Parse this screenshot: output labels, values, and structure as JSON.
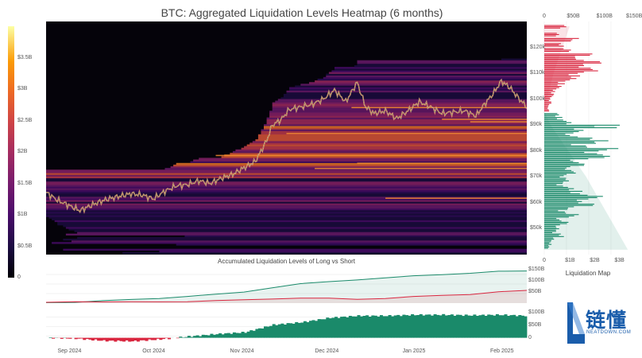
{
  "title": "BTC: Aggregated Liquidation Levels Heatmap (6 months)",
  "subplot_title": "Accumulated Liquidation Levels of Long vs Short",
  "side_title": "Liquidation Map",
  "brand": {
    "cn": "链懂",
    "en": "NEATDOWN.COM",
    "color": "#1a5dab"
  },
  "colors": {
    "long": "#1a8a6a",
    "short": "#d9263f",
    "bg_heat": "#05030a"
  },
  "chart_data": [
    {
      "type": "heatmap",
      "title": "BTC: Aggregated Liquidation Levels Heatmap (6 months)",
      "xlabel": "",
      "ylabel": "",
      "x_ticks": [
        "Sep 2024",
        "Oct 2024",
        "Nov 2024",
        "Dec 2024",
        "Jan 2025",
        "Feb 2025"
      ],
      "x_tick_positions_day": [
        8,
        38,
        69,
        99,
        130,
        161
      ],
      "x_days": 170,
      "y_range": [
        40000,
        130000
      ],
      "y_ticks": [
        {
          "v": 50000,
          "label": "$50k"
        },
        {
          "v": 60000,
          "label": "$60k"
        },
        {
          "v": 70000,
          "label": "$70k"
        },
        {
          "v": 80000,
          "label": "$80k"
        },
        {
          "v": 90000,
          "label": "$90k"
        },
        {
          "v": 100000,
          "label": "$100k"
        },
        {
          "v": 110000,
          "label": "$110k"
        },
        {
          "v": 120000,
          "label": "$120k"
        }
      ],
      "colorbar": {
        "range": [
          0,
          4000000000
        ],
        "ticks": [
          "0",
          "$0.5B",
          "$1B",
          "$1.5B",
          "$2B",
          "$2.5B",
          "$3B",
          "$3.5B"
        ],
        "tick_values": [
          0,
          0.5,
          1,
          1.5,
          2,
          2.5,
          3,
          3.5
        ]
      },
      "price_series": {
        "day": [
          0,
          4,
          8,
          12,
          15,
          18,
          22,
          26,
          30,
          34,
          38,
          42,
          46,
          50,
          54,
          58,
          62,
          66,
          70,
          74,
          78,
          80,
          83,
          86,
          90,
          94,
          98,
          102,
          106,
          110,
          113,
          116,
          120,
          124,
          128,
          132,
          136,
          140,
          144,
          148,
          152,
          155,
          158,
          161,
          164,
          167,
          170
        ],
        "price": [
          64000,
          61000,
          59000,
          57000,
          58500,
          60000,
          61500,
          62500,
          63500,
          63000,
          61500,
          64500,
          66500,
          67000,
          68500,
          67500,
          69500,
          71000,
          73500,
          76000,
          84000,
          90000,
          92000,
          96000,
          97000,
          98000,
          100000,
          103500,
          99000,
          106500,
          97000,
          94500,
          95500,
          92500,
          95500,
          99000,
          97000,
          94500,
          95000,
          95500,
          93500,
          98000,
          102000,
          107000,
          104500,
          100500,
          97000
        ]
      }
    },
    {
      "type": "area",
      "title": "Accumulated Liquidation Levels of Long vs Short",
      "y_ticks": [
        "$50B",
        "$100B",
        "$150B"
      ],
      "ylim": [
        0,
        170
      ],
      "day": [
        0,
        10,
        20,
        30,
        40,
        50,
        60,
        70,
        80,
        90,
        100,
        110,
        120,
        130,
        140,
        150,
        160,
        170
      ],
      "series": [
        {
          "name": "",
          "values": [
            2,
            5,
            10,
            15,
            22,
            30,
            38,
            50,
            70,
            85,
            95,
            105,
            112,
            120,
            128,
            134,
            140,
            143
          ]
        },
        {
          "name": "",
          "values": [
            2,
            8,
            6,
            4,
            6,
            8,
            10,
            14,
            20,
            22,
            20,
            18,
            22,
            28,
            34,
            40,
            50,
            55
          ]
        }
      ]
    },
    {
      "type": "area",
      "title": "",
      "y_ticks": [
        "0",
        "$50B",
        "$100B"
      ],
      "ylim": [
        -30,
        120
      ],
      "day": [
        0,
        10,
        20,
        30,
        40,
        50,
        60,
        70,
        80,
        90,
        100,
        110,
        120,
        130,
        140,
        150,
        160,
        170
      ],
      "values": [
        0,
        -3,
        -12,
        -14,
        -6,
        5,
        15,
        22,
        52,
        62,
        80,
        88,
        88,
        92,
        92,
        90,
        92,
        88
      ]
    },
    {
      "type": "bar",
      "title": "Liquidation Map",
      "top_axis": {
        "label_ticks": [
          "0",
          "$50B",
          "$100B",
          "$150B"
        ],
        "range": [
          0,
          150
        ]
      },
      "bottom_axis": {
        "label_ticks": [
          "0",
          "$1B",
          "$2B",
          "$3B"
        ],
        "range": [
          0,
          3.6
        ]
      },
      "price_range": [
        40000,
        130000
      ],
      "split_price": 95000,
      "short_levels": [
        {
          "p": 128000,
          "v": 0.9
        },
        {
          "p": 125000,
          "v": 0.6
        },
        {
          "p": 123000,
          "v": 1.4
        },
        {
          "p": 121000,
          "v": 0.8
        },
        {
          "p": 119000,
          "v": 1.1
        },
        {
          "p": 117000,
          "v": 2.0
        },
        {
          "p": 115500,
          "v": 1.6
        },
        {
          "p": 114000,
          "v": 2.4
        },
        {
          "p": 112500,
          "v": 1.9
        },
        {
          "p": 111000,
          "v": 2.2
        },
        {
          "p": 109500,
          "v": 1.5
        },
        {
          "p": 108000,
          "v": 1.3
        },
        {
          "p": 106500,
          "v": 0.9
        },
        {
          "p": 105000,
          "v": 0.7
        },
        {
          "p": 103500,
          "v": 0.5
        },
        {
          "p": 102000,
          "v": 0.4
        },
        {
          "p": 100500,
          "v": 0.3
        },
        {
          "p": 99000,
          "v": 0.3
        },
        {
          "p": 97500,
          "v": 0.2
        },
        {
          "p": 96000,
          "v": 0.2
        }
      ],
      "long_levels": [
        {
          "p": 94000,
          "v": 0.6
        },
        {
          "p": 92500,
          "v": 0.8
        },
        {
          "p": 91000,
          "v": 1.1
        },
        {
          "p": 89500,
          "v": 3.2
        },
        {
          "p": 88000,
          "v": 1.6
        },
        {
          "p": 86500,
          "v": 1.2
        },
        {
          "p": 85000,
          "v": 2.0
        },
        {
          "p": 83500,
          "v": 2.6
        },
        {
          "p": 82000,
          "v": 1.8
        },
        {
          "p": 80500,
          "v": 3.0
        },
        {
          "p": 79000,
          "v": 2.4
        },
        {
          "p": 77500,
          "v": 2.7
        },
        {
          "p": 76000,
          "v": 1.4
        },
        {
          "p": 74500,
          "v": 1.7
        },
        {
          "p": 73000,
          "v": 1.1
        },
        {
          "p": 71500,
          "v": 1.3
        },
        {
          "p": 70000,
          "v": 0.9
        },
        {
          "p": 68500,
          "v": 1.0
        },
        {
          "p": 67000,
          "v": 0.8
        },
        {
          "p": 65500,
          "v": 1.2
        },
        {
          "p": 64000,
          "v": 1.6
        },
        {
          "p": 62500,
          "v": 2.4
        },
        {
          "p": 61000,
          "v": 1.8
        },
        {
          "p": 59500,
          "v": 2.1
        },
        {
          "p": 58000,
          "v": 1.2
        },
        {
          "p": 56500,
          "v": 0.9
        },
        {
          "p": 55000,
          "v": 1.4
        },
        {
          "p": 53500,
          "v": 0.7
        },
        {
          "p": 52000,
          "v": 1.0
        },
        {
          "p": 50500,
          "v": 0.6
        },
        {
          "p": 49000,
          "v": 0.5
        },
        {
          "p": 47500,
          "v": 0.8
        },
        {
          "p": 46000,
          "v": 0.4
        },
        {
          "p": 44500,
          "v": 0.3
        },
        {
          "p": 43000,
          "v": 0.2
        }
      ],
      "cum_short_B": [
        {
          "p": 128000,
          "v": 42
        },
        {
          "p": 120000,
          "v": 30
        },
        {
          "p": 110000,
          "v": 15
        },
        {
          "p": 100000,
          "v": 4
        },
        {
          "p": 95000,
          "v": 0
        }
      ],
      "cum_long_B": [
        {
          "p": 95000,
          "v": 0
        },
        {
          "p": 90000,
          "v": 10
        },
        {
          "p": 80000,
          "v": 40
        },
        {
          "p": 70000,
          "v": 70
        },
        {
          "p": 60000,
          "v": 95
        },
        {
          "p": 50000,
          "v": 120
        },
        {
          "p": 42000,
          "v": 140
        }
      ]
    }
  ]
}
